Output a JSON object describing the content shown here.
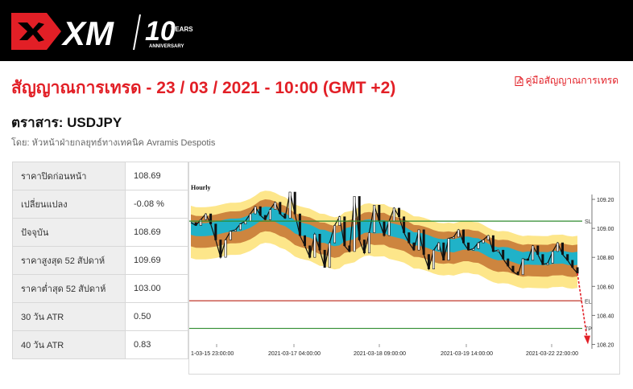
{
  "header": {
    "logo_text": "XM",
    "anniversary_number": "10",
    "anniversary_years": "YEARS",
    "anniversary_label": "ANNIVERSARY"
  },
  "title": "สัญญาณการเทรด - 23 / 03 / 2021 - 10:00 (GMT +2)",
  "guide_link": "คู่มือสัญญาณการเทรด",
  "instrument_label": "ตราสาร: USDJPY",
  "author": "โดย: หัวหน้าฝ่ายกลยุทธ์ทางเทคนิค Avramis Despotis",
  "stats": [
    {
      "label": "ราคาปิดก่อนหน้า",
      "value": "108.69"
    },
    {
      "label": "เปลี่ยนแปลง",
      "value": "-0.08 %"
    },
    {
      "label": "ปัจจุบัน",
      "value": "108.69"
    },
    {
      "label": "ราคาสูงสุด 52 สัปดาห์",
      "value": "109.69"
    },
    {
      "label": "ราคาต่ำสุด 52 สัปดาห์",
      "value": "103.00"
    },
    {
      "label": "30 วัน ATR",
      "value": "0.50"
    },
    {
      "label": "40 วัน ATR",
      "value": "0.83"
    }
  ],
  "colors": {
    "accent": "#e21f26",
    "sl_line": "#2e8b2e",
    "el_line": "#c0392b",
    "band_yellow": "#fde68a",
    "band_orange": "#cd853f",
    "band_cyan": "#20b2c8"
  },
  "chart_data": {
    "type": "line",
    "title": "Hourly",
    "x_tick_labels": [
      "1-03-15 23:00:00",
      "2021-03-17 04:00:00",
      "2021-03-18 09:00:00",
      "2021-03-19 14:00:00",
      "2021-03-22 22:00:00"
    ],
    "y_ticks": [
      "109.20",
      "109.00",
      "108.80",
      "108.60",
      "108.40",
      "108.20"
    ],
    "ylim": [
      108.18,
      109.3
    ],
    "levels": [
      {
        "name": "SL",
        "value": 109.05,
        "color": "#2e8b2e"
      },
      {
        "name": "EL",
        "value": 108.5,
        "color": "#c0392b"
      },
      {
        "name": "TP",
        "value": 108.31,
        "color": "#2e8b2e"
      }
    ],
    "series": [
      {
        "values": [
          109.04,
          109.02,
          109.06,
          109.1,
          109.03,
          108.92,
          108.8,
          108.92,
          108.98,
          108.99,
          109.03,
          109.05,
          109.1,
          109.15,
          109.09,
          109.06,
          109.13,
          109.18,
          109.1,
          109.07,
          109.25,
          109.1,
          108.95,
          108.88,
          108.8,
          108.96,
          108.85,
          108.73,
          108.9,
          109.02,
          109.08,
          108.88,
          108.84,
          109.22,
          108.92,
          108.83,
          108.97,
          109.16,
          109.05,
          108.95,
          109.05,
          109.14,
          109.08,
          108.97,
          108.9,
          108.85,
          108.99,
          108.82,
          108.72,
          108.85,
          108.9,
          108.78,
          108.93,
          108.94,
          108.99,
          108.9,
          108.85,
          108.86,
          108.9,
          108.92,
          108.95,
          108.84,
          108.85,
          108.79,
          108.74,
          108.7,
          108.68,
          108.79,
          108.78,
          108.88,
          108.82,
          108.75,
          108.76,
          108.84,
          108.9,
          108.82,
          108.78,
          108.73,
          108.69
        ]
      }
    ]
  }
}
